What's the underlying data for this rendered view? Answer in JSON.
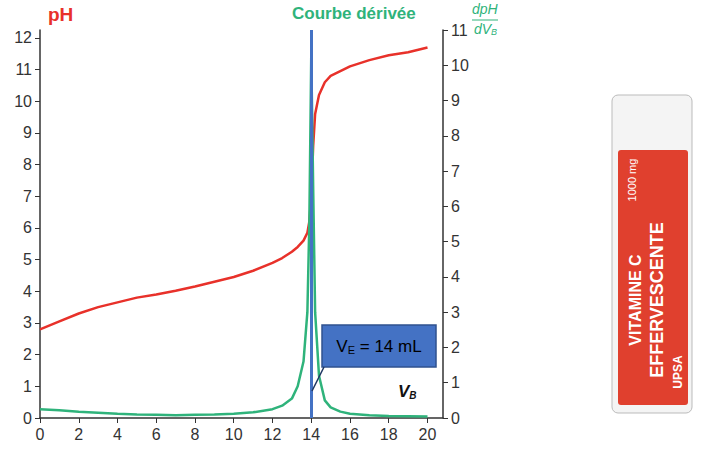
{
  "chart_data": {
    "type": "line",
    "title": "Courbe dérivée",
    "y_label": "pH",
    "y2_label": {
      "numerator": "dpH",
      "denominator": "dV",
      "subscript": "B"
    },
    "x_label": {
      "text": "V",
      "subscript": "B"
    },
    "x": [
      0,
      1,
      2,
      3,
      4,
      5,
      6,
      7,
      8,
      9,
      10,
      11,
      12,
      12.5,
      13,
      13.3,
      13.6,
      13.8,
      13.9,
      14,
      14.1,
      14.2,
      14.4,
      14.7,
      15,
      15.5,
      16,
      17,
      18,
      19,
      20
    ],
    "series": [
      {
        "name": "pH",
        "color": "#e8312a",
        "values": [
          2.8,
          3.05,
          3.3,
          3.5,
          3.65,
          3.8,
          3.9,
          4.02,
          4.15,
          4.3,
          4.45,
          4.65,
          4.9,
          5.05,
          5.25,
          5.4,
          5.6,
          5.85,
          6.2,
          7.0,
          8.6,
          9.6,
          10.2,
          10.6,
          10.8,
          10.95,
          11.1,
          11.3,
          11.45,
          11.55,
          11.7
        ]
      },
      {
        "name": "Courbe dérivée",
        "color": "#2fb37b",
        "axis": "y2",
        "values": [
          0.25,
          0.22,
          0.18,
          0.15,
          0.12,
          0.1,
          0.09,
          0.08,
          0.09,
          0.1,
          0.12,
          0.16,
          0.25,
          0.35,
          0.55,
          0.9,
          1.6,
          3.0,
          5.5,
          10.3,
          6.5,
          3.0,
          1.2,
          0.5,
          0.3,
          0.18,
          0.12,
          0.08,
          0.06,
          0.05,
          0.04
        ]
      }
    ],
    "xlim": [
      0,
      20.8
    ],
    "xticks": [
      0,
      2,
      4,
      6,
      8,
      10,
      12,
      14,
      16,
      18,
      20
    ],
    "ylim": [
      0,
      12.25
    ],
    "yticks": [
      0,
      1,
      2,
      3,
      4,
      5,
      6,
      7,
      8,
      9,
      10,
      11,
      12
    ],
    "y2lim": [
      0,
      11
    ],
    "y2ticks": [
      0,
      1,
      2,
      3,
      4,
      5,
      6,
      7,
      8,
      9,
      10,
      11
    ],
    "grid": false,
    "annotation": {
      "text": "V",
      "subscript": "E",
      "suffix": " = 14 mL",
      "x": 14,
      "color": "#4472c4"
    }
  },
  "illustration": {
    "texts": [
      "VITAMINE C",
      "EFFERVESCENTE",
      "1000 mg",
      "UPSA"
    ]
  }
}
